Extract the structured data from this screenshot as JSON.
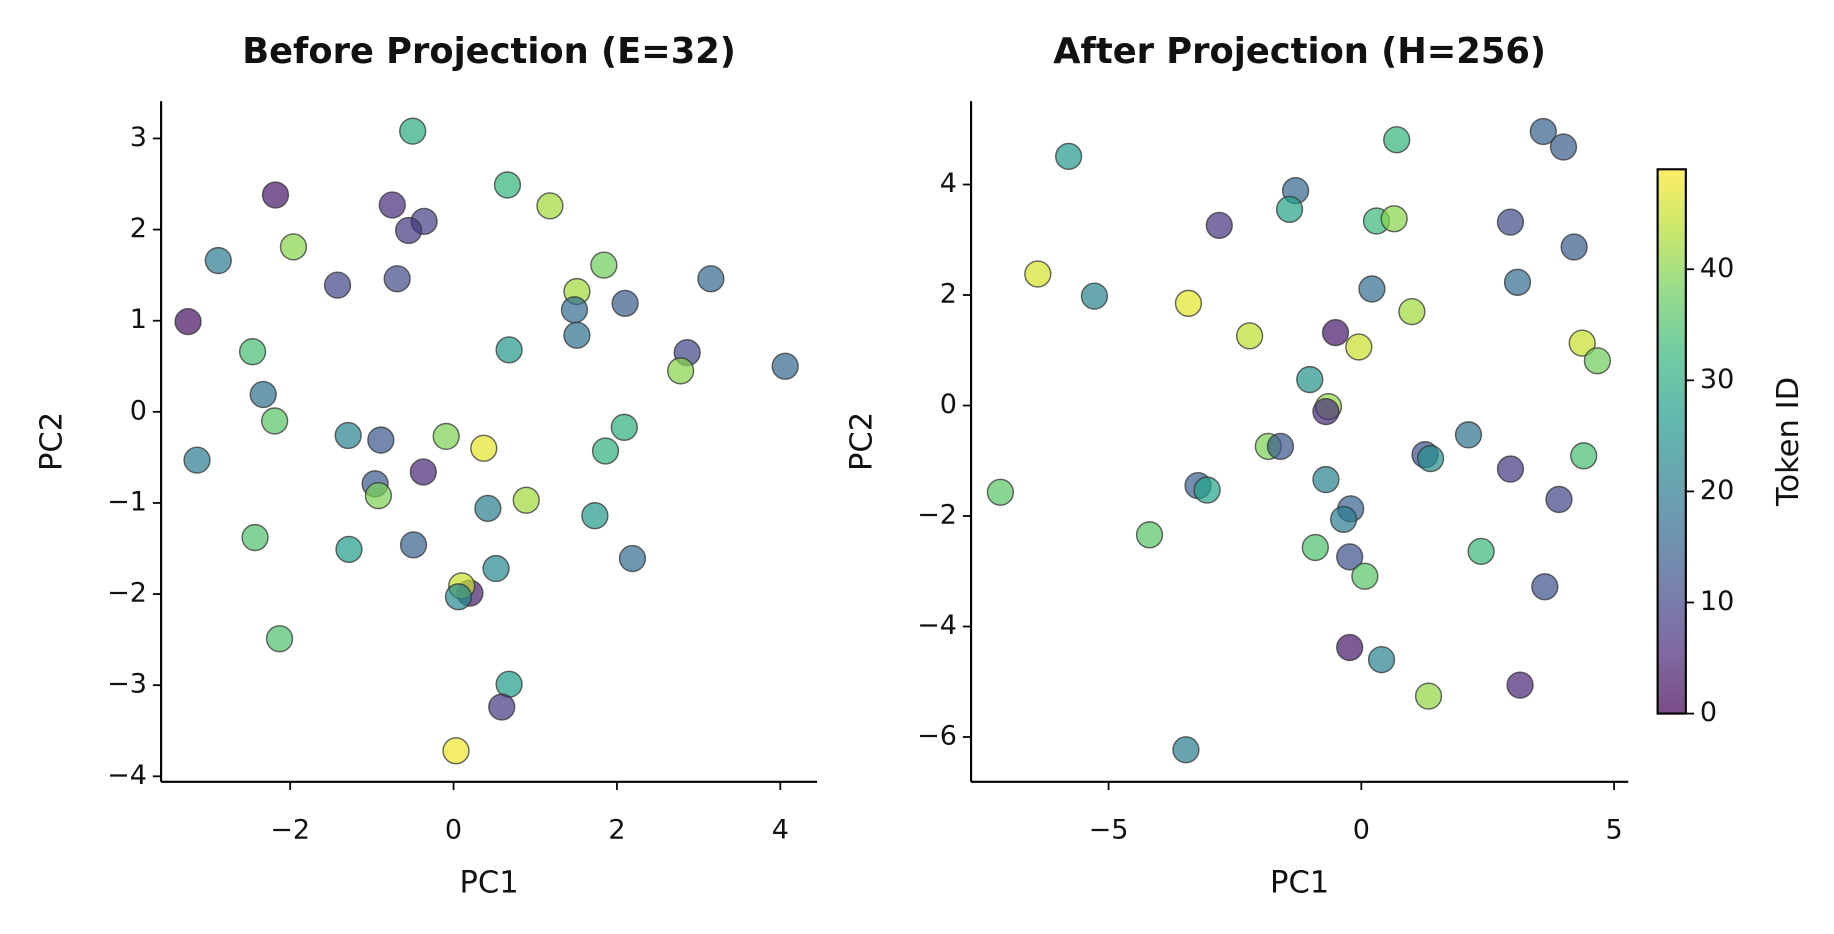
{
  "chart_data": [
    {
      "type": "scatter",
      "title": "Before Projection (E=32)",
      "xlabel": "PC1",
      "ylabel": "PC2",
      "colormap": "viridis",
      "alpha": 0.7,
      "x": [
        -0.5,
        -2.18,
        -0.75,
        -0.36,
        -0.55,
        -1.96,
        -2.88,
        -1.42,
        -0.69,
        0.66,
        1.18,
        1.84,
        1.51,
        1.48,
        1.51,
        2.1,
        3.15,
        -3.25,
        -2.46,
        2.86,
        2.78,
        4.06,
        0.68,
        -2.33,
        -2.19,
        -3.14,
        -1.29,
        -0.89,
        -0.09,
        0.37,
        2.09,
        1.86,
        -0.96,
        -0.92,
        -0.37,
        0.89,
        0.42,
        1.73,
        -2.43,
        -1.28,
        -0.49,
        2.19,
        0.52,
        0.2,
        0.1,
        0.06,
        -2.13,
        0.68,
        0.59,
        0.03
      ],
      "y": [
        3.08,
        2.38,
        2.27,
        2.09,
        1.99,
        1.81,
        1.66,
        1.39,
        1.46,
        2.49,
        2.26,
        1.61,
        1.32,
        1.12,
        0.84,
        1.19,
        1.46,
        0.99,
        0.66,
        0.65,
        0.45,
        0.5,
        0.68,
        0.19,
        -0.1,
        -0.53,
        -0.26,
        -0.31,
        -0.27,
        -0.4,
        -0.17,
        -0.43,
        -0.79,
        -0.92,
        -0.66,
        -0.97,
        -1.06,
        -1.14,
        -1.38,
        -1.51,
        -1.46,
        -1.61,
        -1.72,
        -1.99,
        -1.91,
        -2.03,
        -2.49,
        -2.99,
        -3.24,
        -3.72
      ],
      "c": [
        30,
        3,
        6,
        9,
        8,
        40,
        20,
        10,
        11,
        32,
        42,
        38,
        42,
        17,
        18,
        14,
        16,
        2,
        34,
        10,
        40,
        16,
        26,
        18,
        36,
        20,
        22,
        13,
        39,
        47,
        31,
        31,
        14,
        39,
        5,
        42,
        21,
        26,
        35,
        27,
        15,
        17,
        23,
        4,
        45,
        23,
        35,
        27,
        8,
        48
      ],
      "xlim": [
        -3.58,
        4.45
      ],
      "ylim": [
        -4.06,
        3.41
      ],
      "xticks": [
        {
          "value": -2,
          "label": "−2"
        },
        0,
        2,
        4
      ],
      "yticks": [
        {
          "value": -4,
          "label": "−4"
        },
        {
          "value": -3,
          "label": "−3"
        },
        {
          "value": -2,
          "label": "−2"
        },
        {
          "value": -1,
          "label": "−1"
        },
        0,
        1,
        2,
        3
      ]
    },
    {
      "type": "scatter",
      "title": "After Projection (H=256)",
      "xlabel": "PC1",
      "ylabel": "PC2",
      "colormap": "viridis",
      "alpha": 0.7,
      "x": [
        -5.79,
        0.7,
        3.6,
        4.0,
        -1.3,
        -1.42,
        -2.81,
        0.3,
        0.65,
        2.95,
        4.21,
        -6.4,
        -5.28,
        -3.42,
        0.21,
        3.09,
        -2.21,
        -0.51,
        -0.05,
        1.0,
        4.37,
        4.67,
        -1.02,
        -0.65,
        -0.7,
        -1.84,
        -1.6,
        2.12,
        1.26,
        1.37,
        4.4,
        2.95,
        3.91,
        -7.14,
        -3.23,
        -3.05,
        -0.7,
        -0.21,
        -0.35,
        -4.19,
        -0.91,
        -0.23,
        0.07,
        2.37,
        3.63,
        -0.23,
        0.4,
        1.33,
        3.14,
        -3.47
      ],
      "y": [
        4.51,
        4.81,
        4.96,
        4.68,
        3.89,
        3.55,
        3.26,
        3.34,
        3.38,
        3.32,
        2.87,
        2.38,
        1.98,
        1.85,
        2.11,
        2.23,
        1.26,
        1.32,
        1.06,
        1.7,
        1.13,
        0.81,
        0.47,
        -0.02,
        -0.11,
        -0.74,
        -0.74,
        -0.53,
        -0.89,
        -0.96,
        -0.91,
        -1.15,
        -1.7,
        -1.57,
        -1.45,
        -1.53,
        -1.34,
        -1.87,
        -2.06,
        -2.34,
        -2.57,
        -2.74,
        -3.09,
        -2.64,
        -3.28,
        -4.38,
        -4.6,
        -5.26,
        -5.06,
        -6.23
      ],
      "c": [
        26,
        32,
        15,
        14,
        16,
        28,
        7,
        33,
        40,
        11,
        14,
        46,
        22,
        47,
        17,
        17,
        44,
        3,
        45,
        42,
        45,
        38,
        25,
        41,
        6,
        39,
        13,
        18,
        12,
        24,
        34,
        8,
        10,
        36,
        15,
        28,
        22,
        15,
        20,
        36,
        35,
        12,
        36,
        33,
        12,
        3,
        22,
        41,
        5,
        21
      ],
      "xlim": [
        -7.72,
        5.28
      ],
      "ylim": [
        -6.81,
        5.51
      ],
      "xticks": [
        {
          "value": -5,
          "label": "−5"
        },
        0,
        5
      ],
      "yticks": [
        {
          "value": -6,
          "label": "−6"
        },
        {
          "value": -4,
          "label": "−4"
        },
        {
          "value": -2,
          "label": "−2"
        },
        0,
        2,
        4
      ],
      "colorbar": {
        "label": "Token ID",
        "lim": [
          0,
          49
        ],
        "ticks": [
          0,
          10,
          20,
          30,
          40
        ]
      }
    }
  ]
}
